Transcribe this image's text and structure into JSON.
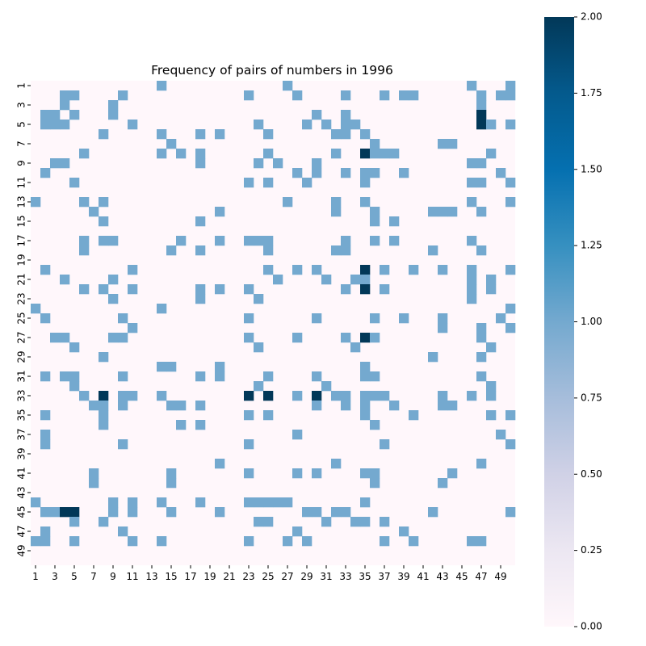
{
  "chart_data": {
    "type": "heatmap",
    "title": "Frequency of pairs of numbers in 1996",
    "xlabel": "",
    "ylabel": "",
    "size": 50,
    "x_tick_labels": [
      "1",
      "3",
      "5",
      "7",
      "9",
      "11",
      "13",
      "15",
      "17",
      "19",
      "21",
      "23",
      "25",
      "27",
      "29",
      "31",
      "33",
      "35",
      "37",
      "39",
      "41",
      "43",
      "45",
      "47",
      "49"
    ],
    "y_tick_labels": [
      "1",
      "3",
      "5",
      "7",
      "9",
      "11",
      "13",
      "15",
      "17",
      "19",
      "21",
      "23",
      "25",
      "27",
      "29",
      "31",
      "33",
      "35",
      "37",
      "39",
      "41",
      "43",
      "45",
      "47",
      "49"
    ],
    "colorbar": {
      "range": [
        0,
        2
      ],
      "ticks": [
        "0.00",
        "0.25",
        "0.50",
        "0.75",
        "1.00",
        "1.25",
        "1.50",
        "1.75",
        "2.00"
      ],
      "colors": {
        "low": "#fff7fb",
        "mid": "#74a9cf",
        "high": "#023858"
      }
    },
    "cells": [
      [
        1,
        14,
        1
      ],
      [
        1,
        27,
        1
      ],
      [
        1,
        46,
        1
      ],
      [
        1,
        50,
        1
      ],
      [
        2,
        4,
        1
      ],
      [
        2,
        5,
        1
      ],
      [
        2,
        10,
        1
      ],
      [
        2,
        23,
        1
      ],
      [
        2,
        28,
        1
      ],
      [
        2,
        33,
        1
      ],
      [
        2,
        37,
        1
      ],
      [
        2,
        39,
        1
      ],
      [
        2,
        40,
        1
      ],
      [
        2,
        47,
        1
      ],
      [
        2,
        49,
        1
      ],
      [
        2,
        50,
        1
      ],
      [
        3,
        4,
        1
      ],
      [
        3,
        9,
        1
      ],
      [
        3,
        47,
        1
      ],
      [
        4,
        2,
        1
      ],
      [
        4,
        3,
        1
      ],
      [
        4,
        5,
        1
      ],
      [
        4,
        9,
        1
      ],
      [
        4,
        30,
        1
      ],
      [
        4,
        33,
        1
      ],
      [
        4,
        47,
        2
      ],
      [
        5,
        2,
        1
      ],
      [
        5,
        3,
        1
      ],
      [
        5,
        4,
        1
      ],
      [
        5,
        11,
        1
      ],
      [
        5,
        24,
        1
      ],
      [
        5,
        29,
        1
      ],
      [
        5,
        31,
        1
      ],
      [
        5,
        33,
        1
      ],
      [
        5,
        34,
        1
      ],
      [
        5,
        47,
        2
      ],
      [
        5,
        48,
        1
      ],
      [
        5,
        50,
        1
      ],
      [
        6,
        8,
        1
      ],
      [
        6,
        14,
        1
      ],
      [
        6,
        18,
        1
      ],
      [
        6,
        20,
        1
      ],
      [
        6,
        25,
        1
      ],
      [
        6,
        32,
        1
      ],
      [
        6,
        33,
        1
      ],
      [
        6,
        35,
        1
      ],
      [
        7,
        15,
        1
      ],
      [
        7,
        36,
        1
      ],
      [
        7,
        43,
        1
      ],
      [
        7,
        44,
        1
      ],
      [
        8,
        6,
        1
      ],
      [
        8,
        14,
        1
      ],
      [
        8,
        16,
        1
      ],
      [
        8,
        18,
        1
      ],
      [
        8,
        25,
        1
      ],
      [
        8,
        32,
        1
      ],
      [
        8,
        35,
        2
      ],
      [
        8,
        36,
        1
      ],
      [
        8,
        37,
        1
      ],
      [
        8,
        38,
        1
      ],
      [
        8,
        48,
        1
      ],
      [
        9,
        3,
        1
      ],
      [
        9,
        4,
        1
      ],
      [
        9,
        18,
        1
      ],
      [
        9,
        24,
        1
      ],
      [
        9,
        26,
        1
      ],
      [
        9,
        30,
        1
      ],
      [
        9,
        46,
        1
      ],
      [
        9,
        47,
        1
      ],
      [
        10,
        2,
        1
      ],
      [
        10,
        28,
        1
      ],
      [
        10,
        30,
        1
      ],
      [
        10,
        33,
        1
      ],
      [
        10,
        35,
        1
      ],
      [
        10,
        36,
        1
      ],
      [
        10,
        39,
        1
      ],
      [
        10,
        49,
        1
      ],
      [
        11,
        5,
        1
      ],
      [
        11,
        23,
        1
      ],
      [
        11,
        25,
        1
      ],
      [
        11,
        29,
        1
      ],
      [
        11,
        35,
        1
      ],
      [
        11,
        46,
        1
      ],
      [
        11,
        47,
        1
      ],
      [
        11,
        50,
        1
      ],
      [
        13,
        1,
        1
      ],
      [
        13,
        6,
        1
      ],
      [
        13,
        8,
        1
      ],
      [
        13,
        27,
        1
      ],
      [
        13,
        32,
        1
      ],
      [
        13,
        35,
        1
      ],
      [
        13,
        46,
        1
      ],
      [
        13,
        50,
        1
      ],
      [
        14,
        7,
        1
      ],
      [
        14,
        20,
        1
      ],
      [
        14,
        32,
        1
      ],
      [
        14,
        36,
        1
      ],
      [
        14,
        42,
        1
      ],
      [
        14,
        43,
        1
      ],
      [
        14,
        44,
        1
      ],
      [
        14,
        47,
        1
      ],
      [
        15,
        8,
        1
      ],
      [
        15,
        18,
        1
      ],
      [
        15,
        36,
        1
      ],
      [
        15,
        38,
        1
      ],
      [
        17,
        6,
        1
      ],
      [
        17,
        8,
        1
      ],
      [
        17,
        9,
        1
      ],
      [
        17,
        16,
        1
      ],
      [
        17,
        20,
        1
      ],
      [
        17,
        23,
        1
      ],
      [
        17,
        24,
        1
      ],
      [
        17,
        25,
        1
      ],
      [
        17,
        33,
        1
      ],
      [
        17,
        36,
        1
      ],
      [
        17,
        38,
        1
      ],
      [
        17,
        46,
        1
      ],
      [
        18,
        6,
        1
      ],
      [
        18,
        15,
        1
      ],
      [
        18,
        18,
        1
      ],
      [
        18,
        25,
        1
      ],
      [
        18,
        32,
        1
      ],
      [
        18,
        33,
        1
      ],
      [
        18,
        42,
        1
      ],
      [
        18,
        47,
        1
      ],
      [
        20,
        2,
        1
      ],
      [
        20,
        11,
        1
      ],
      [
        20,
        25,
        1
      ],
      [
        20,
        28,
        1
      ],
      [
        20,
        30,
        1
      ],
      [
        20,
        35,
        2
      ],
      [
        20,
        37,
        1
      ],
      [
        20,
        40,
        1
      ],
      [
        20,
        43,
        1
      ],
      [
        20,
        46,
        1
      ],
      [
        20,
        50,
        1
      ],
      [
        21,
        4,
        1
      ],
      [
        21,
        9,
        1
      ],
      [
        21,
        26,
        1
      ],
      [
        21,
        31,
        1
      ],
      [
        21,
        34,
        1
      ],
      [
        21,
        35,
        1
      ],
      [
        21,
        46,
        1
      ],
      [
        21,
        48,
        1
      ],
      [
        22,
        6,
        1
      ],
      [
        22,
        8,
        1
      ],
      [
        22,
        11,
        1
      ],
      [
        22,
        18,
        1
      ],
      [
        22,
        20,
        1
      ],
      [
        22,
        23,
        1
      ],
      [
        22,
        33,
        1
      ],
      [
        22,
        35,
        2
      ],
      [
        22,
        37,
        1
      ],
      [
        22,
        46,
        1
      ],
      [
        22,
        48,
        1
      ],
      [
        23,
        9,
        1
      ],
      [
        23,
        18,
        1
      ],
      [
        23,
        24,
        1
      ],
      [
        23,
        46,
        1
      ],
      [
        24,
        1,
        1
      ],
      [
        24,
        14,
        1
      ],
      [
        24,
        50,
        1
      ],
      [
        25,
        2,
        1
      ],
      [
        25,
        10,
        1
      ],
      [
        25,
        23,
        1
      ],
      [
        25,
        30,
        1
      ],
      [
        25,
        36,
        1
      ],
      [
        25,
        39,
        1
      ],
      [
        25,
        43,
        1
      ],
      [
        25,
        49,
        1
      ],
      [
        26,
        11,
        1
      ],
      [
        26,
        43,
        1
      ],
      [
        26,
        47,
        1
      ],
      [
        26,
        50,
        1
      ],
      [
        27,
        3,
        1
      ],
      [
        27,
        4,
        1
      ],
      [
        27,
        9,
        1
      ],
      [
        27,
        10,
        1
      ],
      [
        27,
        23,
        1
      ],
      [
        27,
        28,
        1
      ],
      [
        27,
        33,
        1
      ],
      [
        27,
        35,
        2
      ],
      [
        27,
        36,
        1
      ],
      [
        27,
        47,
        1
      ],
      [
        28,
        5,
        1
      ],
      [
        28,
        24,
        1
      ],
      [
        28,
        34,
        1
      ],
      [
        28,
        48,
        1
      ],
      [
        29,
        8,
        1
      ],
      [
        29,
        42,
        1
      ],
      [
        29,
        47,
        1
      ],
      [
        30,
        14,
        1
      ],
      [
        30,
        15,
        1
      ],
      [
        30,
        20,
        1
      ],
      [
        30,
        35,
        1
      ],
      [
        31,
        2,
        1
      ],
      [
        31,
        4,
        1
      ],
      [
        31,
        5,
        1
      ],
      [
        31,
        10,
        1
      ],
      [
        31,
        18,
        1
      ],
      [
        31,
        20,
        1
      ],
      [
        31,
        25,
        1
      ],
      [
        31,
        30,
        1
      ],
      [
        31,
        35,
        1
      ],
      [
        31,
        36,
        1
      ],
      [
        31,
        47,
        1
      ],
      [
        32,
        5,
        1
      ],
      [
        32,
        24,
        1
      ],
      [
        32,
        31,
        1
      ],
      [
        32,
        48,
        1
      ],
      [
        33,
        6,
        1
      ],
      [
        33,
        8,
        2
      ],
      [
        33,
        10,
        1
      ],
      [
        33,
        11,
        1
      ],
      [
        33,
        14,
        1
      ],
      [
        33,
        23,
        2
      ],
      [
        33,
        25,
        2
      ],
      [
        33,
        28,
        1
      ],
      [
        33,
        30,
        2
      ],
      [
        33,
        32,
        1
      ],
      [
        33,
        33,
        1
      ],
      [
        33,
        35,
        1
      ],
      [
        33,
        36,
        1
      ],
      [
        33,
        37,
        1
      ],
      [
        33,
        43,
        1
      ],
      [
        33,
        46,
        1
      ],
      [
        33,
        48,
        1
      ],
      [
        34,
        7,
        1
      ],
      [
        34,
        8,
        1
      ],
      [
        34,
        10,
        1
      ],
      [
        34,
        15,
        1
      ],
      [
        34,
        16,
        1
      ],
      [
        34,
        18,
        1
      ],
      [
        34,
        30,
        1
      ],
      [
        34,
        33,
        1
      ],
      [
        34,
        35,
        1
      ],
      [
        34,
        38,
        1
      ],
      [
        34,
        43,
        1
      ],
      [
        34,
        44,
        1
      ],
      [
        35,
        2,
        1
      ],
      [
        35,
        8,
        1
      ],
      [
        35,
        23,
        1
      ],
      [
        35,
        25,
        1
      ],
      [
        35,
        35,
        1
      ],
      [
        35,
        40,
        1
      ],
      [
        35,
        48,
        1
      ],
      [
        35,
        50,
        1
      ],
      [
        36,
        8,
        1
      ],
      [
        36,
        16,
        1
      ],
      [
        36,
        18,
        1
      ],
      [
        36,
        36,
        1
      ],
      [
        37,
        2,
        1
      ],
      [
        37,
        28,
        1
      ],
      [
        37,
        49,
        1
      ],
      [
        38,
        2,
        1
      ],
      [
        38,
        10,
        1
      ],
      [
        38,
        23,
        1
      ],
      [
        38,
        37,
        1
      ],
      [
        38,
        50,
        1
      ],
      [
        40,
        20,
        1
      ],
      [
        40,
        32,
        1
      ],
      [
        40,
        47,
        1
      ],
      [
        41,
        7,
        1
      ],
      [
        41,
        15,
        1
      ],
      [
        41,
        23,
        1
      ],
      [
        41,
        28,
        1
      ],
      [
        41,
        30,
        1
      ],
      [
        41,
        35,
        1
      ],
      [
        41,
        36,
        1
      ],
      [
        41,
        44,
        1
      ],
      [
        42,
        7,
        1
      ],
      [
        42,
        15,
        1
      ],
      [
        42,
        36,
        1
      ],
      [
        42,
        43,
        1
      ],
      [
        44,
        1,
        1
      ],
      [
        44,
        9,
        1
      ],
      [
        44,
        11,
        1
      ],
      [
        44,
        14,
        1
      ],
      [
        44,
        18,
        1
      ],
      [
        44,
        23,
        1
      ],
      [
        44,
        24,
        1
      ],
      [
        44,
        25,
        1
      ],
      [
        44,
        26,
        1
      ],
      [
        44,
        27,
        1
      ],
      [
        44,
        35,
        1
      ],
      [
        45,
        2,
        1
      ],
      [
        45,
        3,
        1
      ],
      [
        45,
        4,
        2
      ],
      [
        45,
        5,
        2
      ],
      [
        45,
        9,
        1
      ],
      [
        45,
        11,
        1
      ],
      [
        45,
        15,
        1
      ],
      [
        45,
        20,
        1
      ],
      [
        45,
        29,
        1
      ],
      [
        45,
        30,
        1
      ],
      [
        45,
        32,
        1
      ],
      [
        45,
        33,
        1
      ],
      [
        45,
        42,
        1
      ],
      [
        45,
        50,
        1
      ],
      [
        46,
        5,
        1
      ],
      [
        46,
        8,
        1
      ],
      [
        46,
        24,
        1
      ],
      [
        46,
        25,
        1
      ],
      [
        46,
        31,
        1
      ],
      [
        46,
        34,
        1
      ],
      [
        46,
        35,
        1
      ],
      [
        46,
        37,
        1
      ],
      [
        47,
        2,
        1
      ],
      [
        47,
        10,
        1
      ],
      [
        47,
        28,
        1
      ],
      [
        47,
        39,
        1
      ],
      [
        48,
        1,
        1
      ],
      [
        48,
        2,
        1
      ],
      [
        48,
        5,
        1
      ],
      [
        48,
        11,
        1
      ],
      [
        48,
        14,
        1
      ],
      [
        48,
        23,
        1
      ],
      [
        48,
        27,
        1
      ],
      [
        48,
        29,
        1
      ],
      [
        48,
        37,
        1
      ],
      [
        48,
        40,
        1
      ],
      [
        48,
        46,
        1
      ],
      [
        48,
        47,
        1
      ]
    ]
  }
}
